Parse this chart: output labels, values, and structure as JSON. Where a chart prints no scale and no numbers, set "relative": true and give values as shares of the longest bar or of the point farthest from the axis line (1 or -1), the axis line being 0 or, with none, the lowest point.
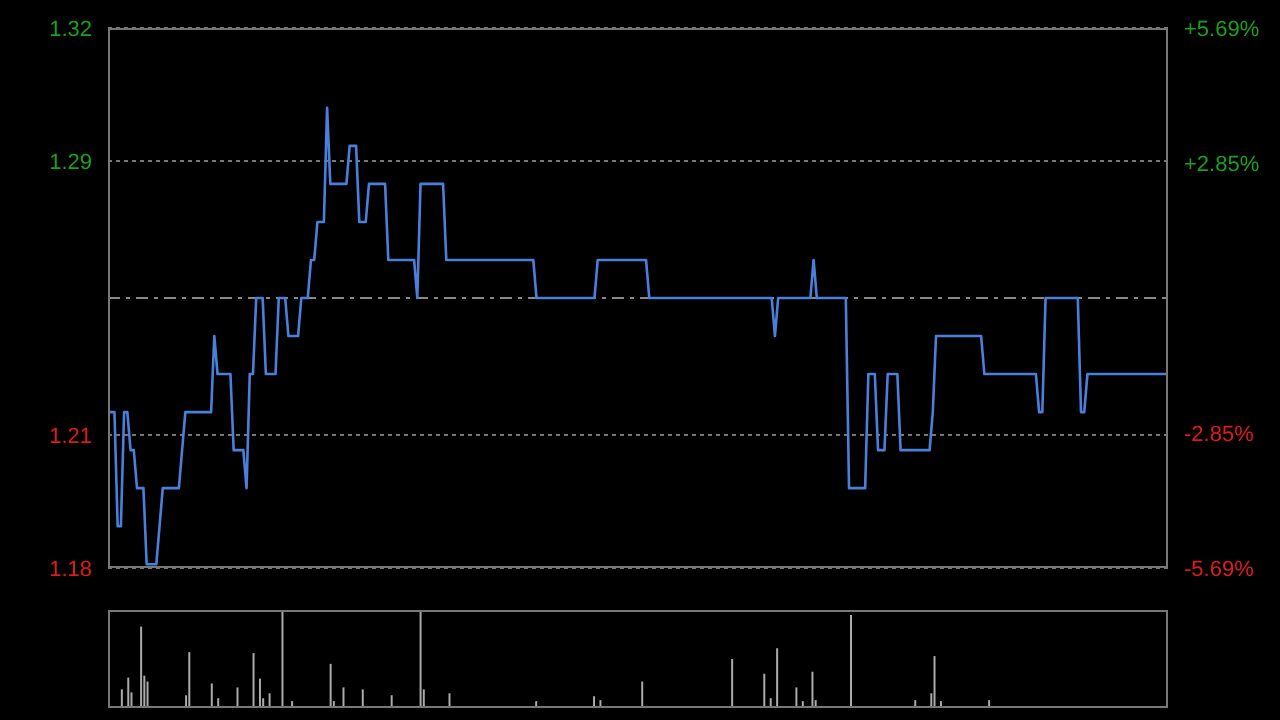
{
  "chart_data": [
    {
      "type": "line",
      "color": "#4a80dc",
      "categories": [
        null,
        null,
        null,
        null,
        null,
        null,
        null,
        null,
        null,
        null,
        null,
        null,
        null,
        null,
        null,
        null,
        null,
        null,
        null,
        null,
        null,
        null,
        null,
        null,
        null,
        null,
        null,
        null,
        null,
        null,
        null,
        null,
        null,
        null,
        null,
        null,
        null,
        null,
        null,
        null,
        null,
        null,
        null,
        null,
        null,
        null,
        null,
        null,
        null,
        null,
        null,
        null,
        null,
        null,
        null,
        null,
        null,
        null,
        null,
        null,
        null,
        null,
        null,
        null,
        null,
        null,
        null,
        null,
        null,
        null,
        null,
        null,
        null,
        null,
        null,
        null,
        null,
        null,
        null,
        null,
        null,
        null,
        null,
        null,
        null,
        null,
        null,
        null,
        null,
        null,
        null,
        null,
        null,
        null,
        null,
        null,
        null,
        null,
        null,
        null,
        null,
        null,
        null,
        null,
        null,
        null,
        null,
        null,
        null,
        null,
        null,
        null,
        null,
        null,
        null,
        null,
        null,
        null,
        null,
        null,
        null,
        null,
        null,
        null,
        null,
        null,
        null,
        null,
        null,
        null,
        null,
        null,
        null,
        null,
        null,
        null,
        null,
        null,
        null,
        null,
        null,
        null,
        null,
        null,
        null,
        null,
        null,
        null,
        null,
        null,
        null,
        null,
        null,
        null,
        null,
        null,
        null,
        null,
        null,
        null,
        null,
        null,
        null,
        null,
        null,
        null,
        null,
        null,
        null,
        null,
        null,
        null,
        null,
        null,
        null,
        null,
        null,
        null,
        null,
        null,
        null,
        null,
        null,
        null,
        null,
        null,
        null,
        null,
        null,
        null,
        null,
        null,
        null,
        null,
        null,
        null,
        null,
        null,
        null,
        null,
        null,
        null,
        null,
        null,
        null,
        null,
        null,
        null,
        null,
        null,
        null,
        null,
        null,
        null,
        null,
        null,
        null,
        null,
        null,
        null,
        null,
        null,
        null,
        null,
        null,
        null,
        null,
        null,
        null,
        null,
        null,
        null,
        null,
        null,
        null,
        null,
        null,
        null,
        null,
        null,
        null,
        null,
        null,
        null,
        null,
        null,
        null,
        null,
        null,
        null,
        null,
        null,
        null,
        null,
        null,
        null,
        null,
        null,
        null,
        null,
        null,
        null,
        null,
        null,
        null,
        null,
        null,
        null,
        null,
        null,
        null,
        null,
        null,
        null,
        null,
        null,
        null,
        null,
        null,
        null,
        null,
        null,
        null,
        null,
        null,
        null,
        null,
        null,
        null,
        null,
        null,
        null,
        null,
        null,
        null,
        null,
        null,
        null,
        null,
        null,
        null,
        null,
        null,
        null,
        null,
        null,
        null,
        null,
        null,
        null,
        null,
        null,
        null,
        null,
        null,
        null,
        null,
        null,
        null,
        null,
        null,
        null,
        null,
        null,
        null,
        null,
        null,
        null,
        null,
        null
      ],
      "values": [
        1.22,
        1.22,
        1.22,
        1.19,
        1.19,
        1.22,
        1.22,
        1.21,
        1.21,
        1.2,
        1.2,
        1.2,
        1.18,
        1.18,
        1.18,
        1.18,
        1.19,
        1.2,
        1.2,
        1.2,
        1.2,
        1.2,
        1.2,
        1.21,
        1.22,
        1.22,
        1.22,
        1.22,
        1.22,
        1.22,
        1.22,
        1.22,
        1.22,
        1.24,
        1.23,
        1.23,
        1.23,
        1.23,
        1.23,
        1.21,
        1.21,
        1.21,
        1.21,
        1.2,
        1.23,
        1.23,
        1.25,
        1.25,
        1.25,
        1.23,
        1.23,
        1.23,
        1.23,
        1.25,
        1.25,
        1.25,
        1.24,
        1.24,
        1.24,
        1.24,
        1.25,
        1.25,
        1.25,
        1.26,
        1.26,
        1.27,
        1.27,
        1.27,
        1.3,
        1.28,
        1.28,
        1.28,
        1.28,
        1.28,
        1.28,
        1.29,
        1.29,
        1.29,
        1.27,
        1.27,
        1.27,
        1.28,
        1.28,
        1.28,
        1.28,
        1.28,
        1.28,
        1.26,
        1.26,
        1.26,
        1.26,
        1.26,
        1.26,
        1.26,
        1.26,
        1.26,
        1.25,
        1.28,
        1.28,
        1.28,
        1.28,
        1.28,
        1.28,
        1.28,
        1.28,
        1.26,
        1.26,
        1.26,
        1.26,
        1.26,
        1.26,
        1.26,
        1.26,
        1.26,
        1.26,
        1.26,
        1.26,
        1.26,
        1.26,
        1.26,
        1.26,
        1.26,
        1.26,
        1.26,
        1.26,
        1.26,
        1.26,
        1.26,
        1.26,
        1.26,
        1.26,
        1.26,
        1.26,
        1.25,
        1.25,
        1.25,
        1.25,
        1.25,
        1.25,
        1.25,
        1.25,
        1.25,
        1.25,
        1.25,
        1.25,
        1.25,
        1.25,
        1.25,
        1.25,
        1.25,
        1.25,
        1.25,
        1.26,
        1.26,
        1.26,
        1.26,
        1.26,
        1.26,
        1.26,
        1.26,
        1.26,
        1.26,
        1.26,
        1.26,
        1.26,
        1.26,
        1.26,
        1.26,
        1.25,
        1.25,
        1.25,
        1.25,
        1.25,
        1.25,
        1.25,
        1.25,
        1.25,
        1.25,
        1.25,
        1.25,
        1.25,
        1.25,
        1.25,
        1.25,
        1.25,
        1.25,
        1.25,
        1.25,
        1.25,
        1.25,
        1.25,
        1.25,
        1.25,
        1.25,
        1.25,
        1.25,
        1.25,
        1.25,
        1.25,
        1.25,
        1.25,
        1.25,
        1.25,
        1.25,
        1.25,
        1.25,
        1.25,
        1.24,
        1.25,
        1.25,
        1.25,
        1.25,
        1.25,
        1.25,
        1.25,
        1.25,
        1.25,
        1.25,
        1.25,
        1.26,
        1.25,
        1.25,
        1.25,
        1.25,
        1.25,
        1.25,
        1.25,
        1.25,
        1.25,
        1.25,
        1.2,
        1.2,
        1.2,
        1.2,
        1.2,
        1.2,
        1.23,
        1.23,
        1.23,
        1.21,
        1.21,
        1.21,
        1.23,
        1.23,
        1.23,
        1.23,
        1.21,
        1.21,
        1.21,
        1.21,
        1.21,
        1.21,
        1.21,
        1.21,
        1.21,
        1.21,
        1.22,
        1.24,
        1.24,
        1.24,
        1.24,
        1.24,
        1.24,
        1.24,
        1.24,
        1.24,
        1.24,
        1.24,
        1.24,
        1.24,
        1.24,
        1.24,
        1.23,
        1.23,
        1.23,
        1.23,
        1.23,
        1.23,
        1.23,
        1.23,
        1.23,
        1.23,
        1.23,
        1.23,
        1.23,
        1.23,
        1.23,
        1.23,
        1.23,
        1.22,
        1.22,
        1.25,
        1.25,
        1.25,
        1.25,
        1.25,
        1.25,
        1.25,
        1.25,
        1.25,
        1.25,
        1.25,
        1.22,
        1.22,
        1.23,
        1.23,
        1.23,
        1.23,
        1.23,
        1.23,
        1.23,
        1.23,
        1.23,
        1.23,
        1.23,
        1.23,
        1.23,
        1.23,
        1.23,
        1.23,
        1.23,
        1.23,
        1.23,
        1.23,
        1.23,
        1.23,
        1.23,
        1.23,
        1.23,
        1.23
      ],
      "ylim": [
        1.179,
        1.321
      ],
      "yticks": [
        {
          "value": 1.179,
          "label": "1.18"
        },
        {
          "value": 1.214,
          "label": "1.21"
        },
        {
          "value": 1.286,
          "label": "1.29"
        },
        {
          "value": 1.321,
          "label": "1.32"
        }
      ],
      "y2lim": [
        -5.69,
        5.69
      ],
      "y2ticks": [
        {
          "value": -5.69,
          "label": "-5.69%"
        },
        {
          "value": -2.85,
          "label": "-2.85%"
        },
        {
          "value": 2.85,
          "label": "+2.85%"
        },
        {
          "value": 5.69,
          "label": "+5.69%"
        }
      ],
      "ref_lines": [
        {
          "axis": "y",
          "value": 1.25,
          "line_style": "dashed",
          "color": "#888888"
        }
      ],
      "grid": "y",
      "tick_labels": "y"
    },
    {
      "type": "bar",
      "relative": true,
      "color": "#aaaaaa",
      "categories": [
        null,
        null,
        null,
        null,
        null,
        null,
        null,
        null,
        null,
        null,
        null,
        null,
        null,
        null,
        null,
        null,
        null,
        null,
        null,
        null,
        null,
        null,
        null,
        null,
        null,
        null,
        null,
        null,
        null,
        null,
        null,
        null,
        null,
        null,
        null,
        null,
        null,
        null,
        null,
        null,
        null,
        null,
        null,
        null,
        null,
        null,
        null,
        null,
        null,
        null,
        null,
        null,
        null,
        null,
        null,
        null,
        null,
        null,
        null,
        null,
        null,
        null,
        null,
        null,
        null,
        null,
        null,
        null,
        null,
        null,
        null,
        null,
        null,
        null,
        null,
        null,
        null,
        null,
        null,
        null,
        null,
        null,
        null,
        null,
        null,
        null,
        null,
        null,
        null,
        null,
        null,
        null,
        null,
        null,
        null,
        null,
        null,
        null,
        null,
        null,
        null,
        null,
        null,
        null,
        null,
        null,
        null,
        null,
        null,
        null,
        null,
        null,
        null,
        null,
        null,
        null,
        null,
        null,
        null,
        null,
        null,
        null,
        null,
        null,
        null,
        null,
        null,
        null,
        null,
        null,
        null,
        null,
        null,
        null,
        null,
        null,
        null,
        null,
        null,
        null,
        null,
        null,
        null,
        null,
        null,
        null,
        null,
        null,
        null,
        null,
        null,
        null,
        null,
        null,
        null,
        null,
        null,
        null,
        null,
        null,
        null,
        null,
        null,
        null,
        null,
        null,
        null,
        null,
        null,
        null,
        null,
        null,
        null,
        null,
        null,
        null,
        null,
        null,
        null,
        null,
        null,
        null,
        null,
        null,
        null,
        null,
        null,
        null,
        null,
        null,
        null,
        null,
        null,
        null,
        null,
        null,
        null,
        null,
        null,
        null,
        null,
        null,
        null,
        null,
        null,
        null,
        null,
        null,
        null,
        null,
        null,
        null,
        null,
        null,
        null,
        null,
        null,
        null,
        null,
        null,
        null,
        null,
        null,
        null,
        null,
        null,
        null,
        null,
        null,
        null,
        null,
        null,
        null,
        null,
        null,
        null,
        null,
        null,
        null,
        null,
        null,
        null,
        null,
        null,
        null,
        null,
        null,
        null,
        null,
        null,
        null,
        null,
        null,
        null,
        null,
        null,
        null,
        null,
        null,
        null,
        null,
        null,
        null,
        null,
        null,
        null,
        null,
        null,
        null,
        null,
        null,
        null,
        null,
        null,
        null,
        null,
        null,
        null,
        null,
        null,
        null,
        null,
        null,
        null,
        null,
        null,
        null,
        null,
        null,
        null,
        null,
        null,
        null,
        null,
        null,
        null,
        null,
        null,
        null,
        null,
        null,
        null,
        null,
        null,
        null,
        null,
        null,
        null,
        null,
        null,
        null,
        null,
        null,
        null,
        null,
        null,
        null,
        null,
        null,
        null,
        null,
        null,
        null,
        null,
        null,
        null,
        null,
        null,
        null,
        null
      ],
      "values": [
        0,
        0,
        0,
        0,
        0.19,
        0,
        0.31,
        0.16,
        0,
        0,
        0.83,
        0.33,
        0.27,
        0,
        0,
        0,
        0,
        0,
        0,
        0,
        0,
        0,
        0,
        0,
        0.13,
        0.57,
        0,
        0,
        0,
        0,
        0,
        0,
        0.25,
        0,
        0.1,
        0,
        0,
        0,
        0,
        0,
        0.21,
        0,
        0,
        0,
        0,
        0.56,
        0,
        0.3,
        0.1,
        0,
        0.15,
        0,
        0,
        0,
        1,
        0,
        0,
        0.07,
        0,
        0,
        0,
        0,
        0,
        0,
        0,
        0,
        0,
        0,
        0,
        0.45,
        0.07,
        0,
        0,
        0.21,
        0,
        0,
        0,
        0,
        0,
        0.19,
        0,
        0,
        0,
        0,
        0,
        0,
        0,
        0,
        0.13,
        0,
        0,
        0,
        0,
        0,
        0,
        0,
        0,
        1,
        0.19,
        0,
        0,
        0,
        0,
        0,
        0,
        0,
        0.15,
        0,
        0,
        0,
        0,
        0,
        0,
        0,
        0,
        0,
        0,
        0,
        0,
        0,
        0,
        0,
        0,
        0,
        0,
        0,
        0,
        0,
        0,
        0,
        0,
        0,
        0,
        0.07,
        0,
        0,
        0,
        0,
        0,
        0,
        0,
        0,
        0,
        0,
        0,
        0,
        0,
        0,
        0,
        0,
        0,
        0.12,
        0,
        0.08,
        0,
        0,
        0,
        0,
        0,
        0,
        0,
        0,
        0,
        0,
        0,
        0,
        0.27,
        0,
        0,
        0,
        0,
        0,
        0,
        0,
        0,
        0,
        0,
        0,
        0,
        0,
        0,
        0,
        0,
        0,
        0,
        0,
        0,
        0,
        0,
        0,
        0,
        0,
        0,
        0,
        0.5,
        0,
        0,
        0,
        0,
        0,
        0,
        0,
        0,
        0,
        0.35,
        0,
        0.1,
        0,
        0.61,
        0,
        0,
        0,
        0,
        0,
        0.21,
        0,
        0.07,
        0,
        0,
        0.37,
        0.08,
        0,
        0,
        0,
        0,
        0,
        0,
        0,
        0,
        0,
        0,
        0.95,
        0,
        0,
        0,
        0,
        0,
        0,
        0,
        0,
        0,
        0,
        0,
        0,
        0,
        0,
        0,
        0,
        0,
        0,
        0,
        0.08,
        0,
        0,
        0,
        0,
        0.15,
        0.53,
        0,
        0.07,
        0,
        0,
        0,
        0,
        0,
        0,
        0,
        0,
        0,
        0,
        0,
        0,
        0,
        0,
        0.08,
        0,
        0,
        0,
        0,
        0,
        0,
        0,
        0,
        0,
        0,
        0,
        0,
        0,
        0,
        0,
        0,
        0,
        0,
        0,
        0,
        0,
        0,
        0,
        0,
        0,
        0,
        0,
        0,
        0,
        0,
        0,
        0,
        0,
        0,
        0,
        0,
        0,
        0,
        0,
        0,
        0,
        0,
        0,
        0,
        0,
        0,
        0,
        0,
        0,
        0,
        0,
        0,
        0,
        0,
        0
      ],
      "tick_labels": false
    }
  ]
}
